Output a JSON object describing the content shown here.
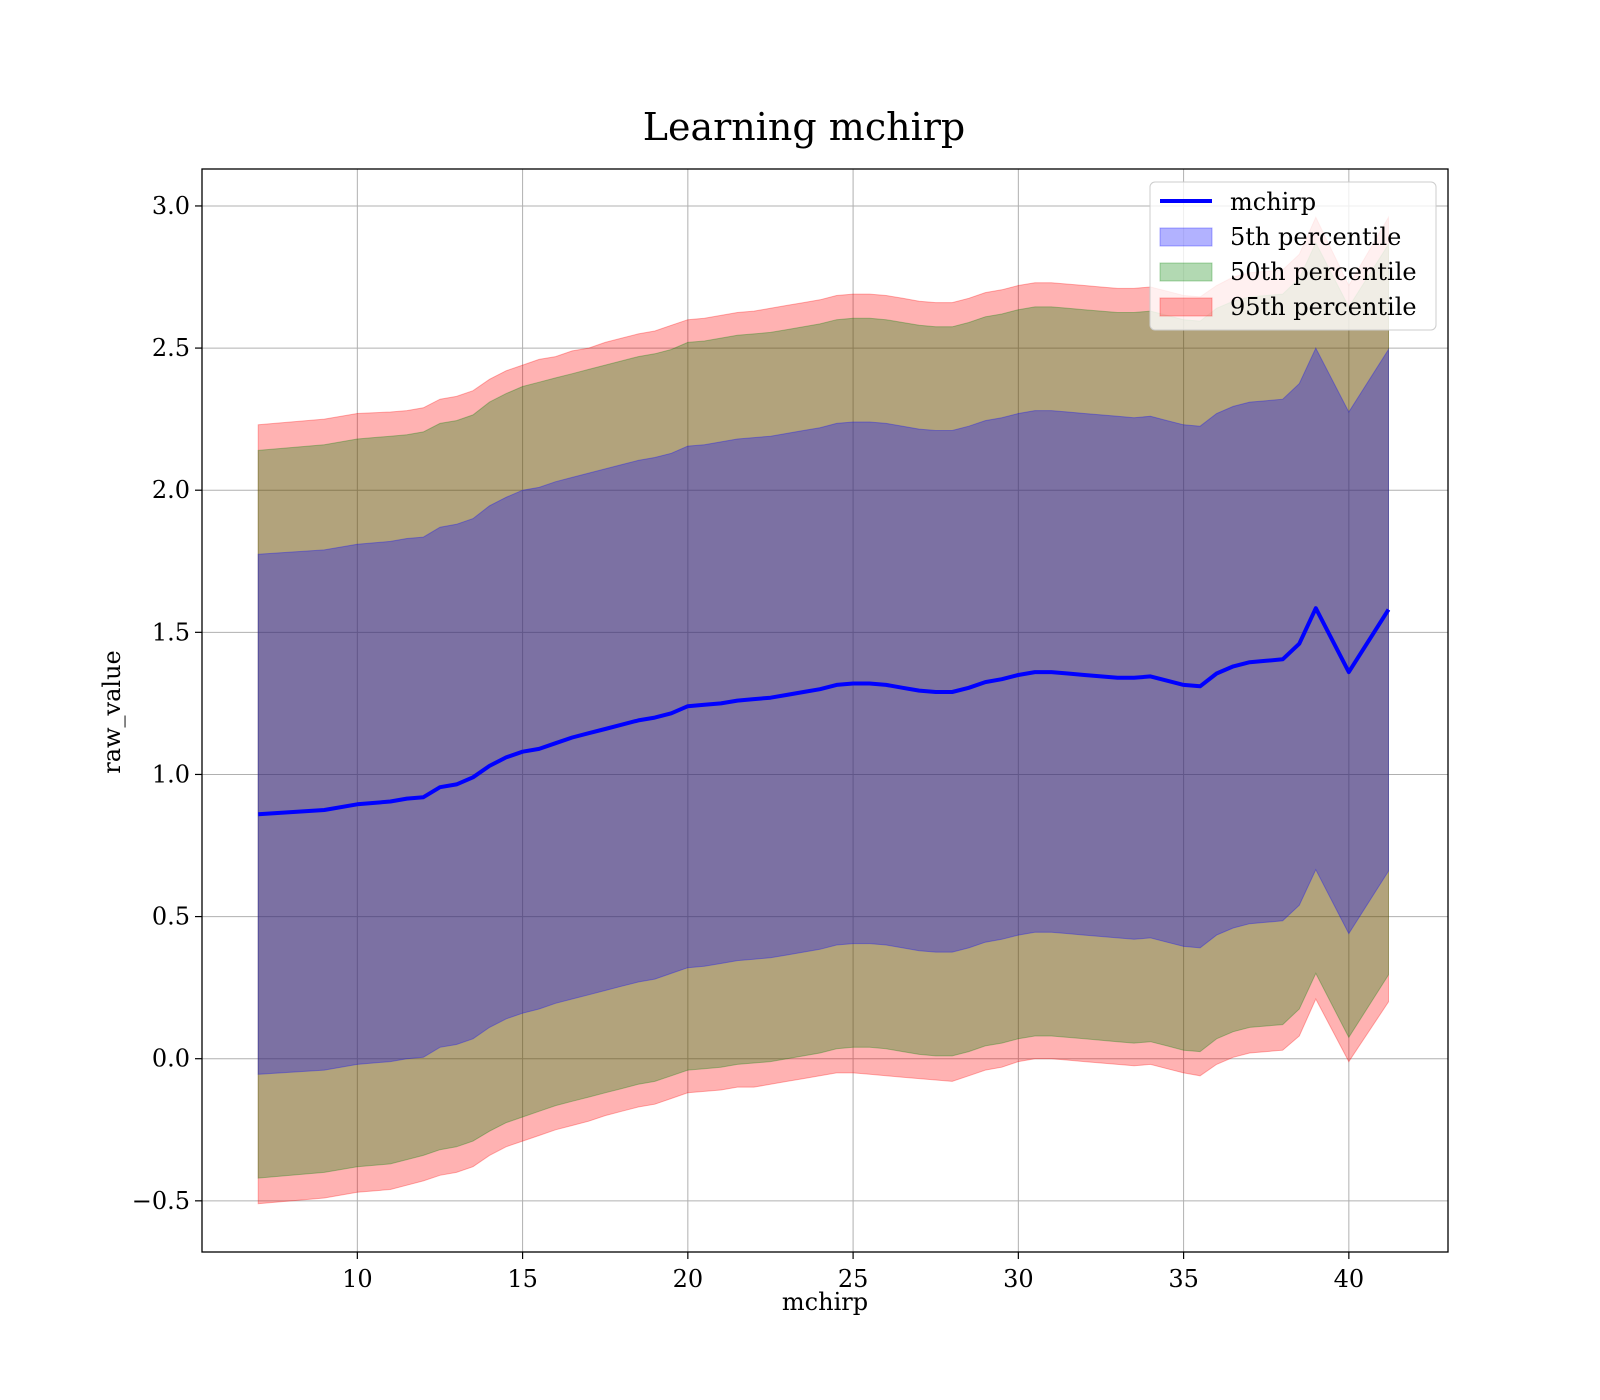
{
  "chart_data": {
    "type": "line",
    "title": "Learning mchirp",
    "xlabel": "mchirp",
    "ylabel": "raw_value",
    "xlim": [
      5.3,
      43.0
    ],
    "ylim": [
      -0.68,
      3.13
    ],
    "x_ticks": [
      10,
      15,
      20,
      25,
      30,
      35,
      40
    ],
    "y_ticks": [
      -0.5,
      0.0,
      0.5,
      1.0,
      1.5,
      2.0,
      2.5,
      3.0
    ],
    "x_tick_labels": [
      "10",
      "15",
      "20",
      "25",
      "30",
      "35",
      "40"
    ],
    "y_tick_labels": [
      "−0.5",
      "0.0",
      "0.5",
      "1.0",
      "1.5",
      "2.0",
      "2.5",
      "3.0"
    ],
    "grid": true,
    "legend_position": "top-right",
    "legend": [
      "mchirp",
      "5th percentile",
      "50th percentile",
      "95th percentile"
    ],
    "x": [
      7.0,
      9.0,
      10.0,
      11.0,
      11.5,
      12.0,
      12.5,
      13.0,
      13.5,
      14.0,
      14.5,
      15.0,
      15.5,
      16.0,
      16.5,
      17.0,
      17.5,
      18.0,
      18.5,
      19.0,
      19.5,
      20.0,
      20.5,
      21.0,
      21.5,
      22.0,
      22.5,
      23.0,
      23.5,
      24.0,
      24.5,
      25.0,
      25.5,
      26.0,
      26.5,
      27.0,
      27.5,
      28.0,
      28.5,
      29.0,
      29.5,
      30.0,
      30.5,
      31.0,
      31.5,
      32.0,
      32.5,
      33.0,
      33.5,
      34.0,
      34.5,
      35.0,
      35.5,
      36.0,
      36.5,
      37.0,
      37.5,
      38.0,
      38.5,
      39.0,
      40.0,
      41.2
    ],
    "series": [
      {
        "name": "mchirp",
        "color": "#0000ff",
        "values": [
          0.86,
          0.875,
          0.895,
          0.905,
          0.915,
          0.92,
          0.955,
          0.965,
          0.99,
          1.03,
          1.06,
          1.08,
          1.09,
          1.11,
          1.13,
          1.145,
          1.16,
          1.175,
          1.19,
          1.2,
          1.215,
          1.24,
          1.245,
          1.25,
          1.26,
          1.265,
          1.27,
          1.28,
          1.29,
          1.3,
          1.315,
          1.32,
          1.32,
          1.315,
          1.305,
          1.295,
          1.29,
          1.29,
          1.305,
          1.325,
          1.335,
          1.35,
          1.36,
          1.36,
          1.355,
          1.35,
          1.345,
          1.34,
          1.34,
          1.345,
          1.33,
          1.315,
          1.31,
          1.355,
          1.38,
          1.395,
          1.4,
          1.405,
          1.46,
          1.585,
          1.36,
          1.58
        ]
      },
      {
        "name": "95th percentile",
        "color": "#ff0000",
        "opacity": 0.3,
        "lower": [
          -0.51,
          -0.49,
          -0.47,
          -0.46,
          -0.445,
          -0.43,
          -0.41,
          -0.4,
          -0.38,
          -0.34,
          -0.31,
          -0.29,
          -0.27,
          -0.25,
          -0.235,
          -0.22,
          -0.2,
          -0.185,
          -0.17,
          -0.16,
          -0.14,
          -0.12,
          -0.115,
          -0.11,
          -0.1,
          -0.1,
          -0.09,
          -0.08,
          -0.07,
          -0.06,
          -0.05,
          -0.05,
          -0.055,
          -0.06,
          -0.065,
          -0.07,
          -0.075,
          -0.08,
          -0.06,
          -0.04,
          -0.03,
          -0.01,
          0.0,
          0.0,
          -0.005,
          -0.01,
          -0.015,
          -0.02,
          -0.025,
          -0.02,
          -0.035,
          -0.05,
          -0.06,
          -0.02,
          0.005,
          0.02,
          0.025,
          0.03,
          0.08,
          0.21,
          -0.01,
          0.2
        ],
        "upper": [
          2.23,
          2.25,
          2.27,
          2.275,
          2.28,
          2.29,
          2.32,
          2.33,
          2.35,
          2.39,
          2.42,
          2.44,
          2.46,
          2.47,
          2.49,
          2.5,
          2.52,
          2.535,
          2.55,
          2.56,
          2.58,
          2.6,
          2.605,
          2.615,
          2.625,
          2.63,
          2.64,
          2.65,
          2.66,
          2.67,
          2.685,
          2.69,
          2.69,
          2.685,
          2.675,
          2.665,
          2.66,
          2.66,
          2.675,
          2.695,
          2.705,
          2.72,
          2.73,
          2.73,
          2.725,
          2.72,
          2.715,
          2.71,
          2.71,
          2.715,
          2.7,
          2.685,
          2.68,
          2.72,
          2.75,
          2.765,
          2.77,
          2.775,
          2.83,
          2.96,
          2.72,
          2.96
        ]
      },
      {
        "name": "50th percentile",
        "color": "#008000",
        "opacity": 0.3,
        "lower": [
          -0.42,
          -0.4,
          -0.38,
          -0.37,
          -0.355,
          -0.34,
          -0.32,
          -0.31,
          -0.29,
          -0.255,
          -0.225,
          -0.205,
          -0.185,
          -0.165,
          -0.15,
          -0.135,
          -0.12,
          -0.105,
          -0.09,
          -0.08,
          -0.06,
          -0.04,
          -0.035,
          -0.03,
          -0.02,
          -0.015,
          -0.01,
          0.0,
          0.01,
          0.02,
          0.035,
          0.04,
          0.04,
          0.035,
          0.025,
          0.015,
          0.01,
          0.01,
          0.025,
          0.045,
          0.055,
          0.07,
          0.08,
          0.08,
          0.075,
          0.07,
          0.065,
          0.06,
          0.055,
          0.06,
          0.045,
          0.03,
          0.025,
          0.07,
          0.095,
          0.11,
          0.115,
          0.12,
          0.175,
          0.3,
          0.075,
          0.295
        ],
        "upper": [
          2.14,
          2.16,
          2.18,
          2.19,
          2.195,
          2.205,
          2.235,
          2.245,
          2.265,
          2.31,
          2.34,
          2.365,
          2.38,
          2.395,
          2.41,
          2.425,
          2.44,
          2.455,
          2.47,
          2.48,
          2.495,
          2.52,
          2.525,
          2.535,
          2.545,
          2.55,
          2.555,
          2.565,
          2.575,
          2.585,
          2.6,
          2.605,
          2.605,
          2.6,
          2.59,
          2.58,
          2.575,
          2.575,
          2.59,
          2.61,
          2.62,
          2.635,
          2.645,
          2.645,
          2.64,
          2.635,
          2.63,
          2.625,
          2.625,
          2.63,
          2.615,
          2.6,
          2.595,
          2.64,
          2.665,
          2.68,
          2.685,
          2.69,
          2.745,
          2.87,
          2.645,
          2.865
        ]
      },
      {
        "name": "5th percentile",
        "color": "#0000ff",
        "opacity": 0.3,
        "lower": [
          -0.055,
          -0.04,
          -0.02,
          -0.01,
          0.0,
          0.005,
          0.04,
          0.05,
          0.07,
          0.11,
          0.14,
          0.16,
          0.175,
          0.195,
          0.21,
          0.225,
          0.24,
          0.255,
          0.27,
          0.28,
          0.3,
          0.32,
          0.325,
          0.335,
          0.345,
          0.35,
          0.355,
          0.365,
          0.375,
          0.385,
          0.4,
          0.405,
          0.405,
          0.4,
          0.39,
          0.38,
          0.375,
          0.375,
          0.39,
          0.41,
          0.42,
          0.435,
          0.445,
          0.445,
          0.44,
          0.435,
          0.43,
          0.425,
          0.42,
          0.425,
          0.41,
          0.395,
          0.39,
          0.435,
          0.46,
          0.475,
          0.48,
          0.485,
          0.54,
          0.665,
          0.44,
          0.66
        ],
        "upper": [
          1.775,
          1.79,
          1.81,
          1.82,
          1.83,
          1.835,
          1.87,
          1.88,
          1.9,
          1.945,
          1.975,
          2.0,
          2.01,
          2.03,
          2.045,
          2.06,
          2.075,
          2.09,
          2.105,
          2.115,
          2.13,
          2.155,
          2.16,
          2.17,
          2.18,
          2.185,
          2.19,
          2.2,
          2.21,
          2.22,
          2.235,
          2.24,
          2.24,
          2.235,
          2.225,
          2.215,
          2.21,
          2.21,
          2.225,
          2.245,
          2.255,
          2.27,
          2.28,
          2.28,
          2.275,
          2.27,
          2.265,
          2.26,
          2.255,
          2.26,
          2.245,
          2.23,
          2.225,
          2.27,
          2.295,
          2.31,
          2.315,
          2.32,
          2.375,
          2.5,
          2.275,
          2.495
        ]
      }
    ]
  }
}
